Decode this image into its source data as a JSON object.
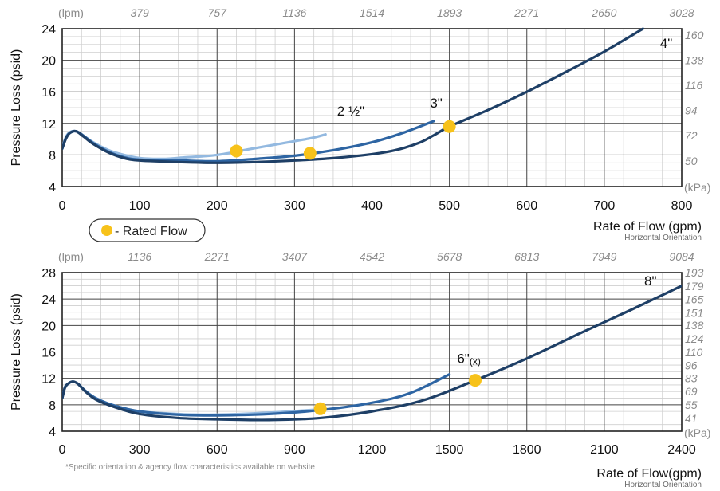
{
  "legend": {
    "label": "- Rated Flow",
    "marker_color": "#f7c21a"
  },
  "footnote": "*Specific orientation & agency flow characteristics available on website",
  "colors": {
    "line_dark": "#1e3f66",
    "line_mid": "#2e65a3",
    "line_light": "#93b9e0",
    "marker": "#f7c21a",
    "grid": "#cfcfcf"
  },
  "chart_data": [
    {
      "type": "line",
      "ylabel": "Pressure Loss (psid)",
      "xlabel": "Rate of Flow (gpm)",
      "orientation_note": "Horizontal Orientation",
      "xlim": [
        0,
        800
      ],
      "ylim": [
        4,
        24
      ],
      "x_ticks": [
        0,
        100,
        200,
        300,
        400,
        500,
        600,
        700,
        800
      ],
      "y_ticks": [
        4,
        8,
        12,
        16,
        20,
        24
      ],
      "top_axis_unit": "(lpm)",
      "top_ticks": [
        "379",
        "757",
        "1136",
        "1514",
        "1893",
        "2271",
        "2650",
        "3028"
      ],
      "right_axis_unit": "(kPa)",
      "right_ticks": [
        {
          "psid": 7.25,
          "label": "50"
        },
        {
          "psid": 10.44,
          "label": "72"
        },
        {
          "psid": 13.63,
          "label": "94"
        },
        {
          "psid": 16.82,
          "label": "116"
        },
        {
          "psid": 20.02,
          "label": "138"
        },
        {
          "psid": 23.21,
          "label": "160"
        }
      ],
      "grid": true,
      "series": [
        {
          "name": "2 ½\"",
          "style": "light",
          "x": [
            0,
            5,
            10,
            18,
            28,
            40,
            60,
            80,
            100,
            130,
            160,
            200,
            240,
            280,
            320,
            340
          ],
          "y": [
            9.0,
            10.3,
            10.9,
            11.0,
            10.4,
            9.6,
            8.6,
            8.0,
            7.6,
            7.5,
            7.7,
            8.0,
            8.7,
            9.4,
            10.1,
            10.6
          ]
        },
        {
          "name": "3\"",
          "style": "mid",
          "x": [
            0,
            5,
            10,
            18,
            28,
            40,
            60,
            80,
            100,
            150,
            200,
            250,
            300,
            350,
            400,
            440,
            480
          ],
          "y": [
            8.8,
            10.2,
            10.8,
            11.0,
            10.4,
            9.5,
            8.4,
            7.7,
            7.4,
            7.3,
            7.2,
            7.5,
            7.9,
            8.6,
            9.6,
            10.8,
            12.3
          ]
        },
        {
          "name": "4\"",
          "style": "dark",
          "x": [
            0,
            5,
            10,
            18,
            28,
            40,
            60,
            80,
            100,
            150,
            200,
            250,
            300,
            350,
            400,
            430,
            460,
            480,
            500,
            550,
            600,
            650,
            700,
            750
          ],
          "y": [
            8.8,
            10.1,
            10.8,
            11.0,
            10.3,
            9.4,
            8.3,
            7.6,
            7.3,
            7.1,
            7.0,
            7.1,
            7.3,
            7.6,
            8.1,
            8.6,
            9.5,
            10.5,
            11.6,
            13.7,
            16.0,
            18.5,
            21.1,
            24.0
          ]
        }
      ],
      "rated_points": [
        {
          "x": 225,
          "y": 8.5
        },
        {
          "x": 320,
          "y": 8.2
        },
        {
          "x": 500,
          "y": 11.6
        }
      ],
      "annotations": [
        {
          "text": "2 ½\"",
          "x": 355,
          "y": 13.0
        },
        {
          "text": "3\"",
          "x": 475,
          "y": 14.0
        },
        {
          "text": "4\"",
          "x": 772,
          "y": 21.6
        }
      ]
    },
    {
      "type": "line",
      "ylabel": "Pressure Loss (psid)",
      "xlabel": "Rate of Flow(gpm)",
      "orientation_note": "Horizontal Orientation",
      "xlim": [
        0,
        2400
      ],
      "ylim": [
        4,
        28
      ],
      "x_ticks": [
        0,
        300,
        600,
        900,
        1200,
        1500,
        1800,
        2100,
        2400
      ],
      "y_ticks": [
        4,
        8,
        12,
        16,
        20,
        24,
        28
      ],
      "top_axis_unit": "(lpm)",
      "top_ticks": [
        "1136",
        "2271",
        "3407",
        "4542",
        "5678",
        "6813",
        "7949",
        "9084"
      ],
      "right_axis_unit": "(kPa)",
      "right_ticks": [
        {
          "psid": 5.95,
          "label": "41"
        },
        {
          "psid": 7.98,
          "label": "55"
        },
        {
          "psid": 10.01,
          "label": "69"
        },
        {
          "psid": 12.04,
          "label": "83"
        },
        {
          "psid": 13.92,
          "label": "96"
        },
        {
          "psid": 15.95,
          "label": "110"
        },
        {
          "psid": 17.98,
          "label": "124"
        },
        {
          "psid": 20.02,
          "label": "138"
        },
        {
          "psid": 21.9,
          "label": "151"
        },
        {
          "psid": 23.93,
          "label": "165"
        },
        {
          "psid": 25.96,
          "label": "179"
        },
        {
          "psid": 27.99,
          "label": "193"
        }
      ],
      "grid": true,
      "series": [
        {
          "name": "6\"(x) light",
          "style": "light",
          "x": [
            0,
            10,
            20,
            40,
            60,
            90,
            130,
            200,
            300,
            450,
            600,
            800,
            1000
          ],
          "y": [
            9.0,
            10.6,
            11.1,
            11.5,
            11.2,
            10.1,
            9.0,
            7.9,
            7.0,
            6.6,
            6.5,
            6.8,
            7.3
          ]
        },
        {
          "name": "6\"(x)",
          "style": "mid",
          "x": [
            0,
            10,
            20,
            40,
            60,
            90,
            130,
            200,
            300,
            450,
            600,
            800,
            1000,
            1200,
            1350,
            1500
          ],
          "y": [
            9.0,
            10.6,
            11.1,
            11.5,
            11.2,
            10.1,
            9.0,
            7.9,
            7.0,
            6.5,
            6.4,
            6.6,
            7.2,
            8.3,
            9.8,
            12.6
          ]
        },
        {
          "name": "8\"",
          "style": "dark",
          "x": [
            0,
            10,
            20,
            40,
            60,
            90,
            130,
            200,
            300,
            450,
            600,
            800,
            1000,
            1200,
            1400,
            1600,
            1800,
            2000,
            2200,
            2400
          ],
          "y": [
            9.0,
            10.5,
            11.1,
            11.5,
            11.2,
            10.0,
            8.8,
            7.7,
            6.6,
            6.0,
            5.8,
            5.7,
            6.0,
            7.0,
            8.7,
            11.7,
            15.0,
            18.7,
            22.3,
            26.0
          ]
        }
      ],
      "rated_points": [
        {
          "x": 1000,
          "y": 7.4
        },
        {
          "x": 1600,
          "y": 11.7
        }
      ],
      "annotations": [
        {
          "text": "6\"(x)",
          "x": 1530,
          "y": 14.3
        },
        {
          "text": "8\"",
          "x": 2255,
          "y": 26.1
        }
      ]
    }
  ]
}
